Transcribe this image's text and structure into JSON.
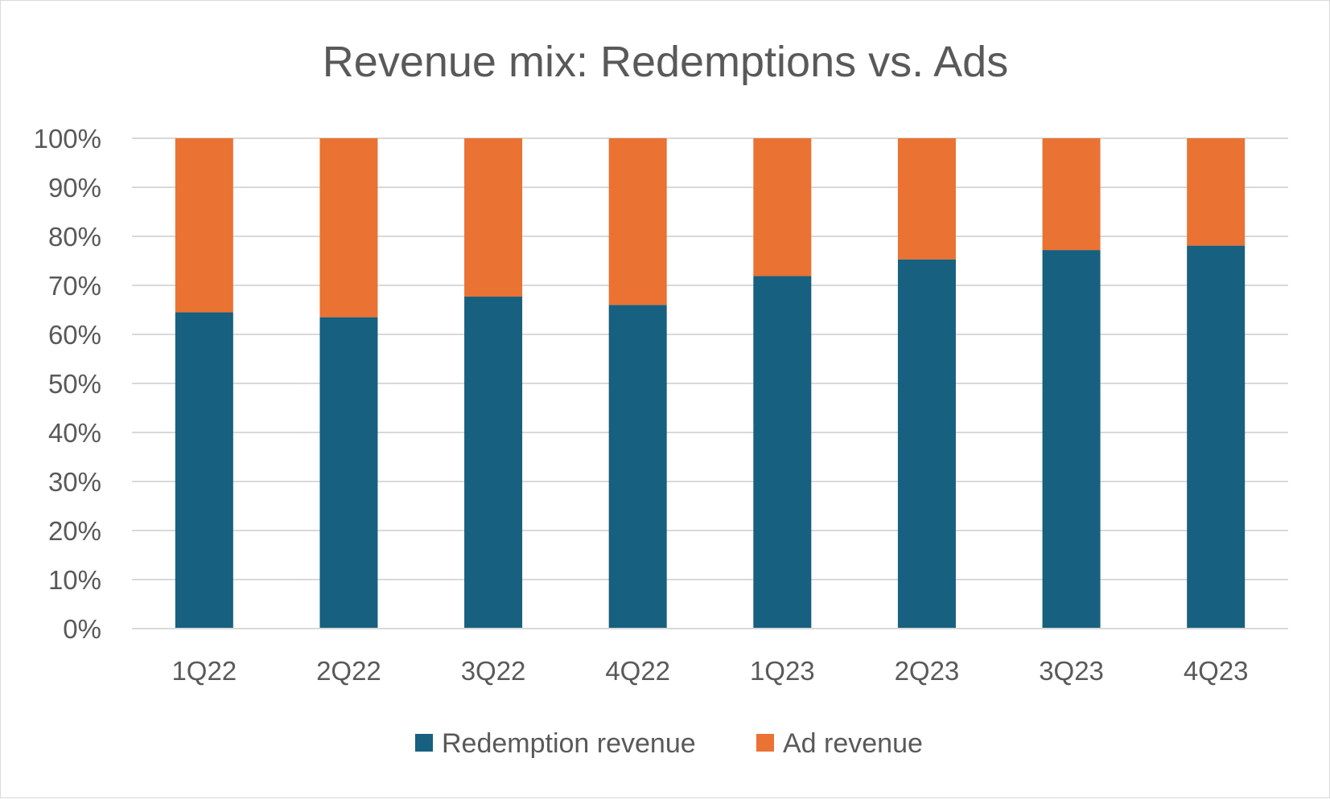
{
  "chart_data": {
    "type": "bar",
    "stacked": true,
    "title": "Revenue mix: Redemptions vs. Ads",
    "xlabel": "",
    "ylabel": "",
    "ylim": [
      0,
      1
    ],
    "y_ticks": [
      "0%",
      "10%",
      "20%",
      "30%",
      "40%",
      "50%",
      "60%",
      "70%",
      "80%",
      "90%",
      "100%"
    ],
    "categories": [
      "1Q22",
      "2Q22",
      "3Q22",
      "4Q22",
      "1Q23",
      "2Q23",
      "3Q23",
      "4Q23"
    ],
    "series": [
      {
        "name": "Redemption revenue",
        "color": "#17607f",
        "values": [
          0.645,
          0.635,
          0.677,
          0.66,
          0.719,
          0.753,
          0.772,
          0.781
        ]
      },
      {
        "name": "Ad revenue",
        "color": "#ea7233",
        "values": [
          0.355,
          0.365,
          0.323,
          0.34,
          0.281,
          0.247,
          0.228,
          0.219
        ]
      }
    ],
    "grid": true,
    "legend_position": "bottom"
  }
}
